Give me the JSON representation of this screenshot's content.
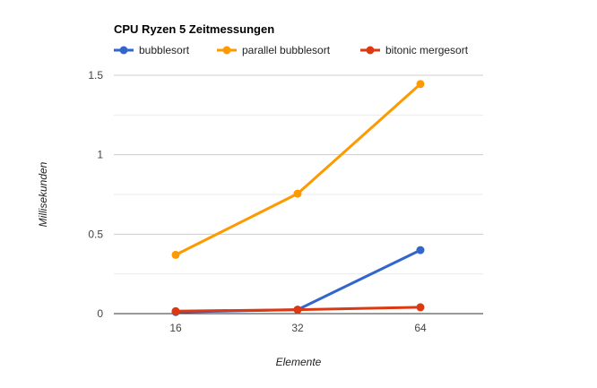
{
  "chart_data": {
    "type": "line",
    "title": "CPU Ryzen 5 Zeitmessungen",
    "xlabel": "Elemente",
    "ylabel": "Millisekunden",
    "categories": [
      "16",
      "32",
      "64"
    ],
    "y_ticks": [
      "0",
      "0.5",
      "1",
      "1.5"
    ],
    "ylim": [
      0,
      1.6
    ],
    "grid": true,
    "legend_position": "top",
    "series": [
      {
        "name": "bubblesort",
        "color": "#3366cc",
        "values": [
          0.01,
          0.025,
          0.4
        ]
      },
      {
        "name": "parallel bubblesort",
        "color": "#ff9900",
        "values": [
          0.37,
          0.755,
          1.445
        ]
      },
      {
        "name": "bitonic mergesort",
        "color": "#dc3912",
        "values": [
          0.015,
          0.025,
          0.04
        ]
      }
    ]
  }
}
